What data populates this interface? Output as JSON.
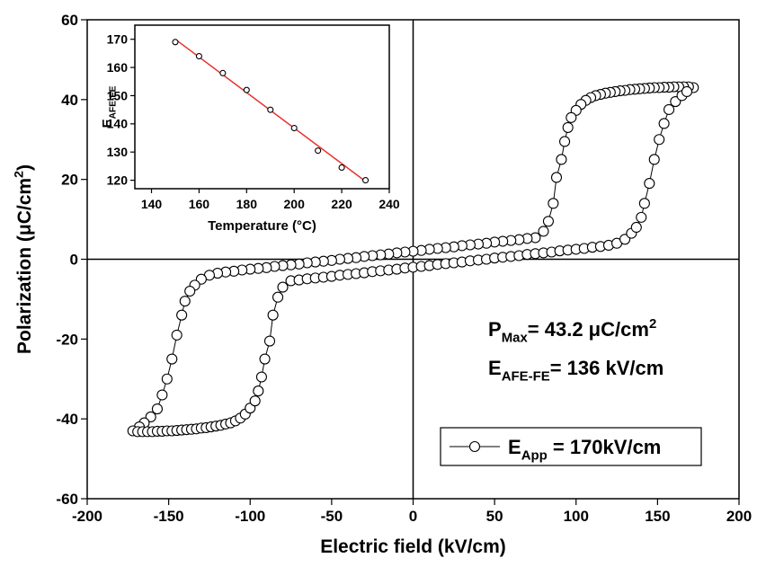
{
  "chart_data": [
    {
      "type": "line",
      "xlabel": "Electric field (kV/cm)",
      "ylabel": [
        {
          "text": "Polarization (μC/cm"
        },
        {
          "text": "2",
          "baseline": "super"
        },
        {
          "text": ")"
        }
      ],
      "xlim": [
        -200,
        200
      ],
      "xticks": [
        -200,
        -150,
        -100,
        -50,
        0,
        50,
        100,
        150,
        200
      ],
      "ylim": [
        -60,
        60
      ],
      "yticks": [
        -60,
        -40,
        -20,
        0,
        20,
        40,
        60
      ],
      "annotations": [
        [
          {
            "text": "P"
          },
          {
            "text": "Max",
            "baseline": "sub"
          },
          {
            "text": "= 43.2 μC/cm"
          },
          {
            "text": "2",
            "baseline": "super"
          }
        ],
        [
          {
            "text": "E"
          },
          {
            "text": "AFE-FE",
            "baseline": "sub"
          },
          {
            "text": "= 136 kV/cm"
          }
        ]
      ],
      "series": [
        {
          "name": [
            {
              "text": "E"
            },
            {
              "text": "App",
              "baseline": "sub"
            },
            {
              "text": " = 170kV/cm"
            }
          ],
          "color": "#000000",
          "mode": "lines+markers",
          "x": [
            172,
            169,
            166,
            163,
            160,
            157,
            154,
            151,
            148,
            145,
            142,
            139,
            136,
            133,
            130,
            127,
            124,
            121,
            118,
            115,
            112,
            109,
            106,
            103,
            100,
            97,
            95,
            93,
            91,
            88,
            86,
            83,
            80,
            75,
            70,
            65,
            60,
            55,
            50,
            45,
            40,
            35,
            30,
            25,
            20,
            15,
            10,
            5,
            0,
            -5,
            -10,
            -15,
            -20,
            -25,
            -30,
            -35,
            -40,
            -45,
            -50,
            -55,
            -60,
            -65,
            -70,
            -75,
            -80,
            -85,
            -90,
            -95,
            -100,
            -105,
            -110,
            -115,
            -120,
            -125,
            -130,
            -134,
            -137,
            -140,
            -142,
            -145,
            -148,
            -151,
            -154,
            -157,
            -161,
            -165,
            -168,
            -172,
            -169,
            -166,
            -163,
            -160,
            -157,
            -154,
            -151,
            -148,
            -145,
            -142,
            -139,
            -136,
            -133,
            -130,
            -127,
            -124,
            -121,
            -118,
            -115,
            -112,
            -109,
            -106,
            -103,
            -100,
            -97,
            -95,
            -93,
            -91,
            -88,
            -86,
            -83,
            -80,
            -75,
            -70,
            -65,
            -60,
            -55,
            -50,
            -45,
            -40,
            -35,
            -30,
            -25,
            -20,
            -15,
            -10,
            -5,
            0,
            5,
            10,
            15,
            20,
            25,
            30,
            35,
            40,
            45,
            50,
            55,
            60,
            65,
            70,
            75,
            80,
            85,
            90,
            95,
            100,
            105,
            110,
            115,
            120,
            125,
            130,
            134,
            137,
            140,
            142,
            145,
            148,
            151,
            154,
            157,
            161,
            165,
            168
          ],
          "values": [
            43,
            43.2,
            43.2,
            43.2,
            43.2,
            43.1,
            43.1,
            43,
            43,
            42.9,
            42.8,
            42.7,
            42.6,
            42.5,
            42.3,
            42.2,
            42,
            41.8,
            41.6,
            41.3,
            41,
            40.5,
            39.8,
            38.8,
            37.3,
            35.5,
            33,
            29.5,
            25,
            20.5,
            14,
            9.5,
            7,
            5.4,
            5.2,
            4.9,
            4.7,
            4.5,
            4.3,
            4.0,
            3.8,
            3.6,
            3.4,
            3.1,
            2.9,
            2.7,
            2.5,
            2.2,
            2.0,
            1.8,
            1.6,
            1.3,
            1.1,
            0.9,
            0.7,
            0.4,
            0.2,
            0,
            -0.3,
            -0.5,
            -0.7,
            -0.9,
            -1.2,
            -1.4,
            -1.6,
            -1.8,
            -2.1,
            -2.3,
            -2.5,
            -2.7,
            -3.0,
            -3.2,
            -3.5,
            -4.0,
            -5,
            -6.5,
            -8,
            -10.5,
            -14,
            -19,
            -25,
            -30,
            -34,
            -37.5,
            -39.5,
            -41,
            -42,
            -43,
            -43.2,
            -43.2,
            -43.2,
            -43.2,
            -43.1,
            -43.1,
            -43,
            -43,
            -42.9,
            -42.8,
            -42.7,
            -42.6,
            -42.5,
            -42.3,
            -42.2,
            -42,
            -41.8,
            -41.6,
            -41.3,
            -41,
            -40.5,
            -39.8,
            -38.8,
            -37.3,
            -35.5,
            -33,
            -29.5,
            -25,
            -20.5,
            -14,
            -9.5,
            -7,
            -5.4,
            -5.2,
            -4.9,
            -4.7,
            -4.5,
            -4.3,
            -4.0,
            -3.8,
            -3.6,
            -3.4,
            -3.1,
            -2.9,
            -2.7,
            -2.5,
            -2.2,
            -2.0,
            -1.8,
            -1.6,
            -1.3,
            -1.1,
            -0.9,
            -0.7,
            -0.4,
            -0.2,
            0,
            0.3,
            0.5,
            0.7,
            0.9,
            1.2,
            1.4,
            1.6,
            1.8,
            2.1,
            2.3,
            2.5,
            2.7,
            3.0,
            3.2,
            3.5,
            4.0,
            5,
            6.5,
            8,
            10.5,
            14,
            19,
            25,
            30,
            34,
            37.5,
            39.5,
            41,
            42
          ]
        }
      ]
    },
    {
      "type": "scatter",
      "xlabel": "Temperature (°C)",
      "ylabel": [
        {
          "text": "E"
        },
        {
          "text": "AFE-FE",
          "baseline": "sub"
        }
      ],
      "xlim": [
        133,
        240
      ],
      "xticks": [
        140,
        160,
        180,
        200,
        220,
        240
      ],
      "ylim": [
        117,
        175
      ],
      "yticks": [
        120,
        130,
        140,
        150,
        160,
        170
      ],
      "series": [
        {
          "color": "#e8312f",
          "mode": "lines",
          "x": [
            150,
            230
          ],
          "values": [
            170,
            119.6
          ]
        },
        {
          "color": "#000000",
          "mode": "markers",
          "x": [
            150,
            160,
            170,
            180,
            190,
            200,
            210,
            220,
            230
          ],
          "values": [
            169,
            164,
            158,
            152,
            145,
            138.5,
            130.5,
            124.5,
            120
          ]
        }
      ]
    }
  ]
}
